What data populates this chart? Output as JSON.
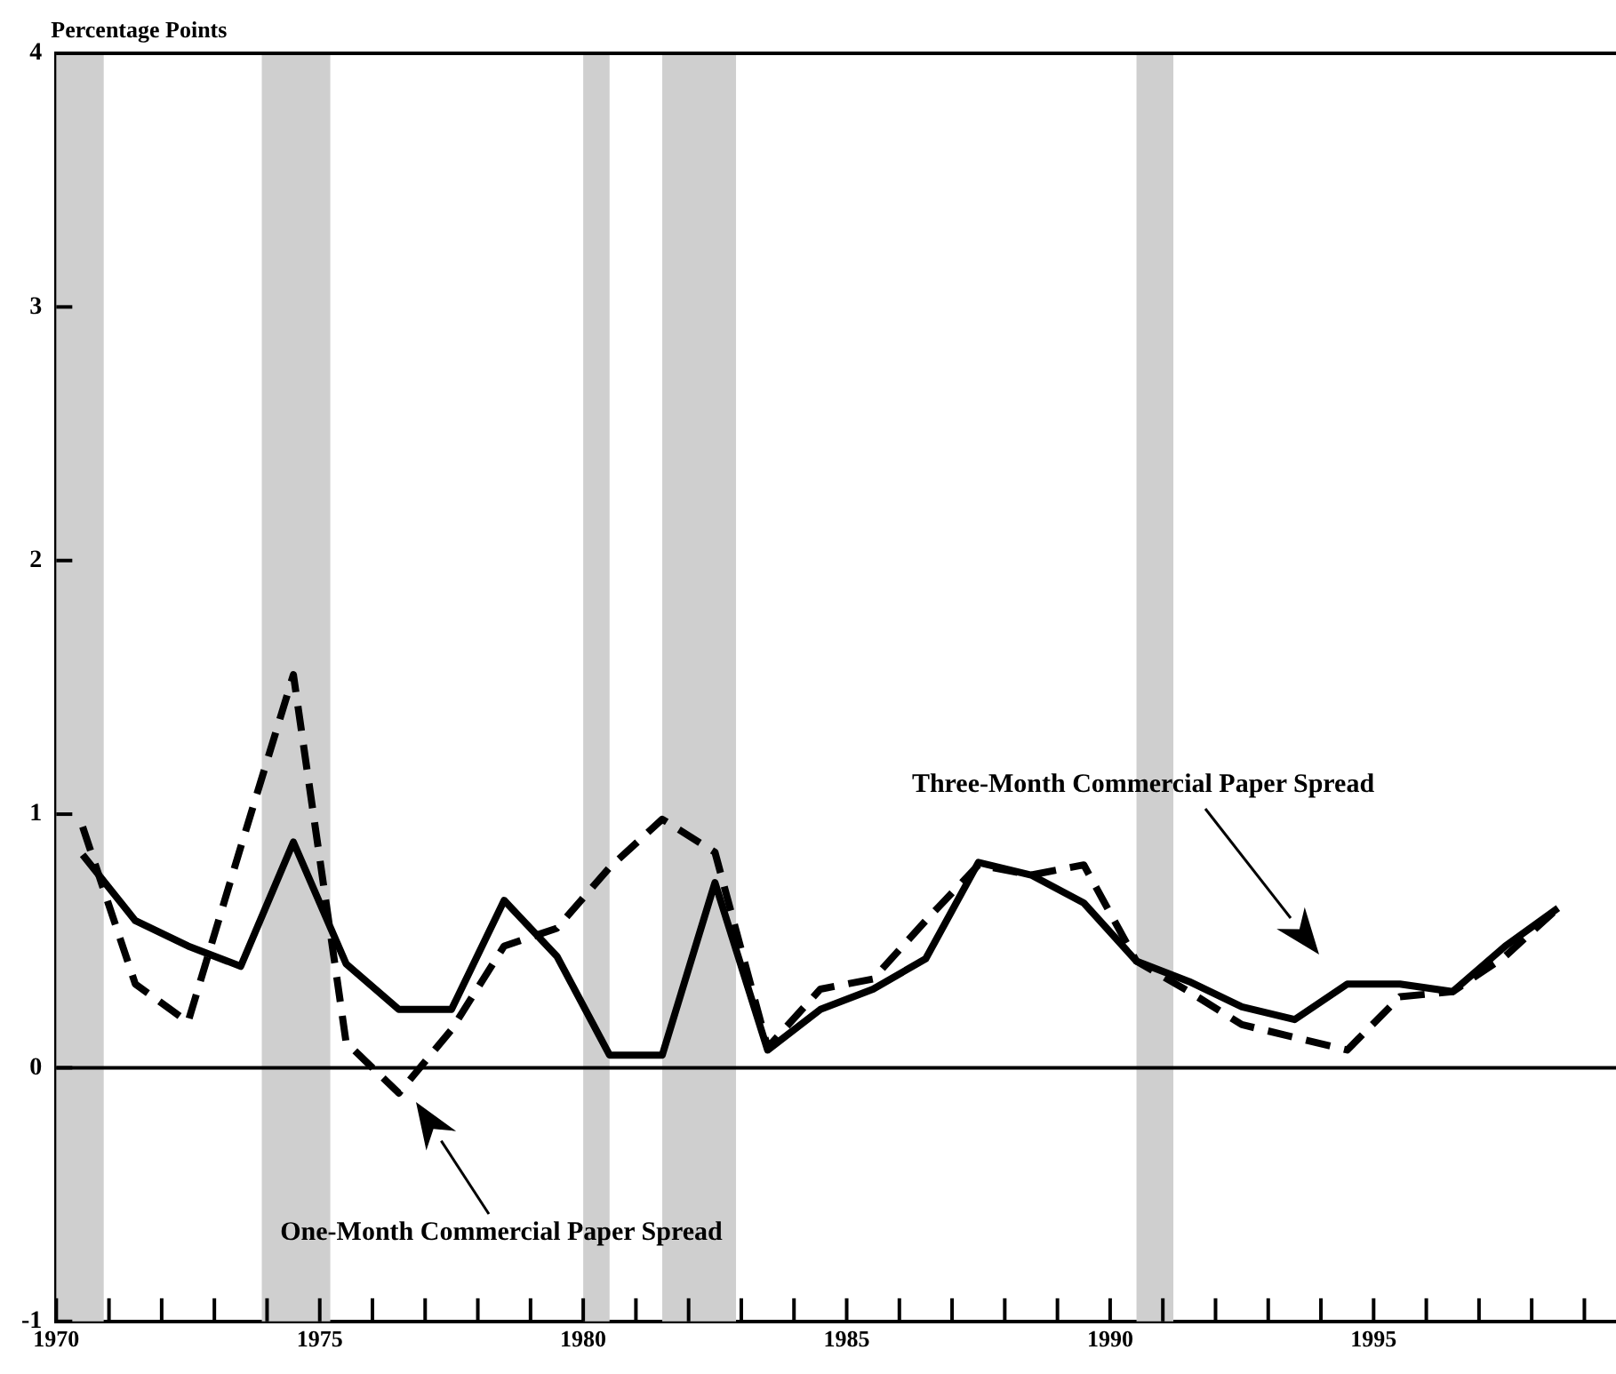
{
  "chart_data": {
    "type": "line",
    "ylabel": "Percentage Points",
    "x": [
      1970.5,
      1971.5,
      1972.5,
      1973.5,
      1974.5,
      1975.5,
      1976.5,
      1977.5,
      1978.5,
      1979.5,
      1980.5,
      1981.5,
      1982.5,
      1983.5,
      1984.5,
      1985.5,
      1986.5,
      1987.5,
      1988.5,
      1989.5,
      1990.5,
      1991.5,
      1992.5,
      1993.5,
      1994.5,
      1995.5,
      1996.5,
      1997.5,
      1998.5
    ],
    "series": [
      {
        "color": "#000000",
        "line_style": "solid",
        "values": [
          0.84,
          0.58,
          0.48,
          0.4,
          0.89,
          0.41,
          0.23,
          0.23,
          0.66,
          0.44,
          0.05,
          0.05,
          0.73,
          0.07,
          0.23,
          0.31,
          0.43,
          0.81,
          0.76,
          0.65,
          0.42,
          0.34,
          0.24,
          0.19,
          0.33,
          0.33,
          0.3,
          0.48,
          0.63
        ]
      },
      {
        "color": "#000000",
        "line_style": "dashed",
        "values": [
          0.95,
          0.33,
          0.18,
          0.87,
          1.55,
          0.1,
          -0.1,
          0.15,
          0.48,
          0.55,
          0.79,
          0.98,
          0.85,
          0.08,
          0.31,
          0.35,
          0.58,
          0.8,
          0.76,
          0.8,
          0.42,
          0.3,
          0.17,
          0.12,
          0.07,
          0.28,
          0.3,
          0.44,
          0.63
        ]
      }
    ],
    "xlim": [
      1970,
      1999.6
    ],
    "xticks": [
      {
        "value": 1970,
        "label": "1970"
      },
      {
        "value": 1971,
        "label": null
      },
      {
        "value": 1972,
        "label": null
      },
      {
        "value": 1973,
        "label": null
      },
      {
        "value": 1974,
        "label": null
      },
      {
        "value": 1975,
        "label": "1975"
      },
      {
        "value": 1976,
        "label": null
      },
      {
        "value": 1977,
        "label": null
      },
      {
        "value": 1978,
        "label": null
      },
      {
        "value": 1979,
        "label": null
      },
      {
        "value": 1980,
        "label": "1980"
      },
      {
        "value": 1981,
        "label": null
      },
      {
        "value": 1982,
        "label": null
      },
      {
        "value": 1983,
        "label": null
      },
      {
        "value": 1984,
        "label": null
      },
      {
        "value": 1985,
        "label": "1985"
      },
      {
        "value": 1986,
        "label": null
      },
      {
        "value": 1987,
        "label": null
      },
      {
        "value": 1988,
        "label": null
      },
      {
        "value": 1989,
        "label": null
      },
      {
        "value": 1990,
        "label": "1990"
      },
      {
        "value": 1991,
        "label": null
      },
      {
        "value": 1992,
        "label": null
      },
      {
        "value": 1993,
        "label": null
      },
      {
        "value": 1994,
        "label": null
      },
      {
        "value": 1995,
        "label": "1995"
      },
      {
        "value": 1996,
        "label": null
      },
      {
        "value": 1997,
        "label": null
      },
      {
        "value": 1998,
        "label": null
      },
      {
        "value": 1999,
        "label": null
      }
    ],
    "ylim": [
      -1,
      4
    ],
    "yticks": [
      -1,
      0,
      1,
      2,
      3,
      4
    ],
    "grid": false,
    "legend": false,
    "marker": "none",
    "ref_lines": [
      {
        "axis": "y",
        "value": 0,
        "color": "#000000"
      }
    ],
    "bands": [
      {
        "axis": "x",
        "from": 1969.9,
        "to": 1970.9,
        "color": "#cfcfcf"
      },
      {
        "axis": "x",
        "from": 1973.9,
        "to": 1975.2,
        "color": "#cfcfcf"
      },
      {
        "axis": "x",
        "from": 1980.0,
        "to": 1980.5,
        "color": "#cfcfcf"
      },
      {
        "axis": "x",
        "from": 1981.5,
        "to": 1982.9,
        "color": "#cfcfcf"
      },
      {
        "axis": "x",
        "from": 1990.5,
        "to": 1991.2,
        "color": "#cfcfcf"
      }
    ],
    "annotations": [
      "Three-Month Commercial Paper Spread",
      "One-Month Commercial Paper Spread"
    ]
  }
}
